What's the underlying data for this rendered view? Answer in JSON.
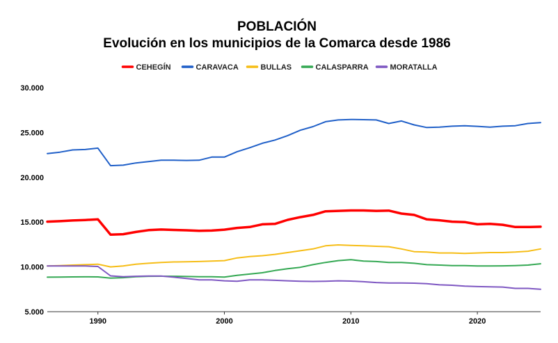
{
  "chart_data": {
    "type": "line",
    "title": "POBLACIÓN",
    "subtitle": "Evolución en los municipios de la Comarca desde 1986",
    "xlabel": "",
    "ylabel": "",
    "ylim": [
      5000,
      30000
    ],
    "xlim": [
      1986,
      2025
    ],
    "grid": false,
    "legend_position": "top",
    "y_ticks": [
      5000,
      10000,
      15000,
      20000,
      25000,
      30000
    ],
    "y_tick_labels": [
      "5.000",
      "10.000",
      "15.000",
      "20.000",
      "25.000",
      "30.000"
    ],
    "x_ticks": [
      1990,
      2000,
      2010,
      2020
    ],
    "x_tick_labels": [
      "1990",
      "2000",
      "2010",
      "2020"
    ],
    "x": [
      1986,
      1987,
      1988,
      1989,
      1990,
      1991,
      1992,
      1993,
      1994,
      1995,
      1996,
      1997,
      1998,
      1999,
      2000,
      2001,
      2002,
      2003,
      2004,
      2005,
      2006,
      2007,
      2008,
      2009,
      2010,
      2011,
      2012,
      2013,
      2014,
      2015,
      2016,
      2017,
      2018,
      2019,
      2020,
      2021,
      2022,
      2023,
      2024,
      2025
    ],
    "series": [
      {
        "name": "CEHEGÍN",
        "color": "#ff0000",
        "values": [
          15050,
          15100,
          15180,
          15230,
          15300,
          13600,
          13650,
          13900,
          14100,
          14170,
          14120,
          14080,
          14030,
          14050,
          14150,
          14350,
          14450,
          14750,
          14800,
          15250,
          15550,
          15800,
          16200,
          16250,
          16300,
          16300,
          16250,
          16280,
          15950,
          15800,
          15300,
          15200,
          15050,
          15000,
          14750,
          14800,
          14700,
          14450,
          14450,
          14480
        ]
      },
      {
        "name": "CARAVACA",
        "color": "#1f5fc8",
        "values": [
          22650,
          22800,
          23050,
          23100,
          23250,
          21300,
          21350,
          21600,
          21750,
          21900,
          21900,
          21880,
          21900,
          22250,
          22250,
          22850,
          23300,
          23800,
          24150,
          24650,
          25250,
          25650,
          26200,
          26400,
          26450,
          26430,
          26400,
          26000,
          26280,
          25850,
          25550,
          25600,
          25700,
          25750,
          25680,
          25600,
          25700,
          25750,
          26000,
          26100
        ]
      },
      {
        "name": "BULLAS",
        "color": "#f6bd16",
        "values": [
          10100,
          10150,
          10200,
          10250,
          10300,
          10000,
          10100,
          10300,
          10400,
          10500,
          10550,
          10570,
          10600,
          10650,
          10700,
          11000,
          11150,
          11250,
          11400,
          11600,
          11800,
          12000,
          12350,
          12450,
          12400,
          12350,
          12300,
          12250,
          12000,
          11700,
          11650,
          11550,
          11550,
          11500,
          11550,
          11600,
          11600,
          11650,
          11750,
          12000
        ]
      },
      {
        "name": "CALASPARRA",
        "color": "#34a853",
        "values": [
          8850,
          8870,
          8880,
          8890,
          8880,
          8750,
          8800,
          8900,
          8950,
          8960,
          8950,
          8930,
          8900,
          8900,
          8870,
          9050,
          9200,
          9350,
          9600,
          9800,
          9950,
          10250,
          10500,
          10700,
          10800,
          10650,
          10600,
          10500,
          10500,
          10400,
          10250,
          10200,
          10150,
          10150,
          10100,
          10100,
          10120,
          10150,
          10200,
          10350
        ]
      },
      {
        "name": "MORATALLA",
        "color": "#7e57c2",
        "values": [
          10100,
          10100,
          10100,
          10100,
          10050,
          9000,
          8900,
          8950,
          8980,
          8980,
          8850,
          8700,
          8550,
          8550,
          8450,
          8400,
          8550,
          8550,
          8500,
          8450,
          8400,
          8380,
          8400,
          8450,
          8420,
          8350,
          8250,
          8200,
          8200,
          8180,
          8120,
          8000,
          7950,
          7850,
          7800,
          7780,
          7750,
          7600,
          7600,
          7500
        ]
      }
    ]
  }
}
